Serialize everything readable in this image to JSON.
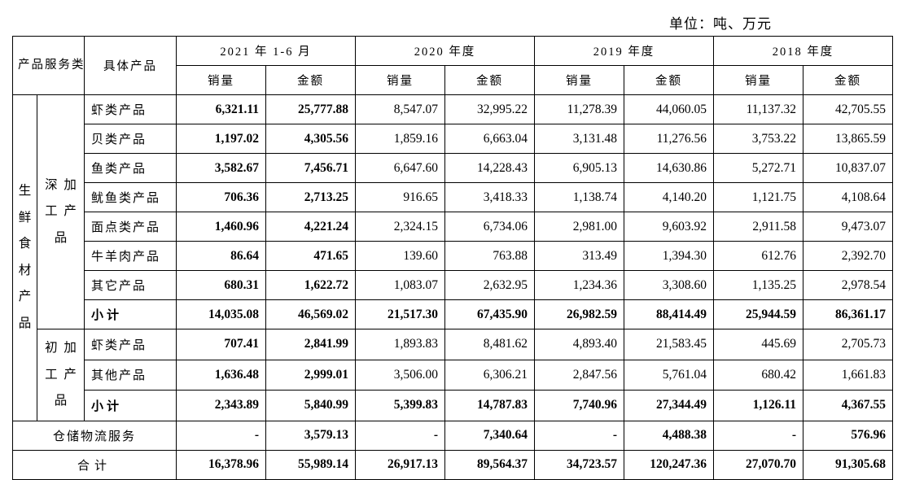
{
  "unit_label": "单位：吨、万元",
  "headers": {
    "cat_label": "产品服务类别",
    "prod_label": "具体产品",
    "periods": [
      "2021 年 1-6 月",
      "2020 年度",
      "2019 年度",
      "2018 年度"
    ],
    "vol": "销量",
    "amt": "金额"
  },
  "big_cat": "生鲜食材产品",
  "deep": {
    "label": "深 加工 产品",
    "l1": "深",
    "l2": "加",
    "l3": "工",
    "l4": "产",
    "l5": "品",
    "rows": [
      {
        "name": "虾类产品",
        "vals": [
          "6,321.11",
          "25,777.88",
          "8,547.07",
          "32,995.22",
          "11,278.39",
          "44,060.05",
          "11,137.32",
          "42,705.55"
        ]
      },
      {
        "name": "贝类产品",
        "vals": [
          "1,197.02",
          "4,305.56",
          "1,859.16",
          "6,663.04",
          "3,131.48",
          "11,276.56",
          "3,753.22",
          "13,865.59"
        ]
      },
      {
        "name": "鱼类产品",
        "vals": [
          "3,582.67",
          "7,456.71",
          "6,647.60",
          "14,228.43",
          "6,905.13",
          "14,630.86",
          "5,272.71",
          "10,837.07"
        ]
      },
      {
        "name": "鱿鱼类产品",
        "vals": [
          "706.36",
          "2,713.25",
          "916.65",
          "3,418.33",
          "1,138.74",
          "4,140.20",
          "1,121.75",
          "4,108.64"
        ]
      },
      {
        "name": "面点类产品",
        "vals": [
          "1,460.96",
          "4,221.24",
          "2,324.15",
          "6,734.06",
          "2,981.00",
          "9,603.92",
          "2,911.58",
          "9,473.07"
        ]
      },
      {
        "name": "牛羊肉产品",
        "vals": [
          "86.64",
          "471.65",
          "139.60",
          "763.88",
          "313.49",
          "1,394.30",
          "612.76",
          "2,392.70"
        ]
      },
      {
        "name": "其它产品",
        "vals": [
          "680.31",
          "1,622.72",
          "1,083.07",
          "2,632.95",
          "1,234.36",
          "3,308.60",
          "1,135.25",
          "2,978.54"
        ]
      }
    ],
    "subtotal": {
      "name": "小计",
      "vals": [
        "14,035.08",
        "46,569.02",
        "21,517.30",
        "67,435.90",
        "26,982.59",
        "88,414.49",
        "25,944.59",
        "86,361.17"
      ]
    }
  },
  "prim": {
    "label": "初 加工 产品",
    "l1": "初",
    "l2": "加",
    "l3": "工",
    "l4": "产",
    "l5": "品",
    "rows": [
      {
        "name": "虾类产品",
        "vals": [
          "707.41",
          "2,841.99",
          "1,893.83",
          "8,481.62",
          "4,893.40",
          "21,583.45",
          "445.69",
          "2,705.73"
        ]
      },
      {
        "name": "其他产品",
        "vals": [
          "1,636.48",
          "2,999.01",
          "3,506.00",
          "6,306.21",
          "2,847.56",
          "5,761.04",
          "680.42",
          "1,661.83"
        ]
      }
    ],
    "subtotal": {
      "name": "小计",
      "vals": [
        "2,343.89",
        "5,840.99",
        "5,399.83",
        "14,787.83",
        "7,740.96",
        "27,344.49",
        "1,126.11",
        "4,367.55"
      ]
    }
  },
  "logistics": {
    "name": "仓储物流服务",
    "vals": [
      "-",
      "3,579.13",
      "-",
      "7,340.64",
      "-",
      "4,488.38",
      "-",
      "576.96"
    ]
  },
  "total": {
    "name": "合计",
    "vals": [
      "16,378.96",
      "55,989.14",
      "26,917.13",
      "89,564.37",
      "34,723.57",
      "120,247.36",
      "27,070.70",
      "91,305.68"
    ]
  }
}
